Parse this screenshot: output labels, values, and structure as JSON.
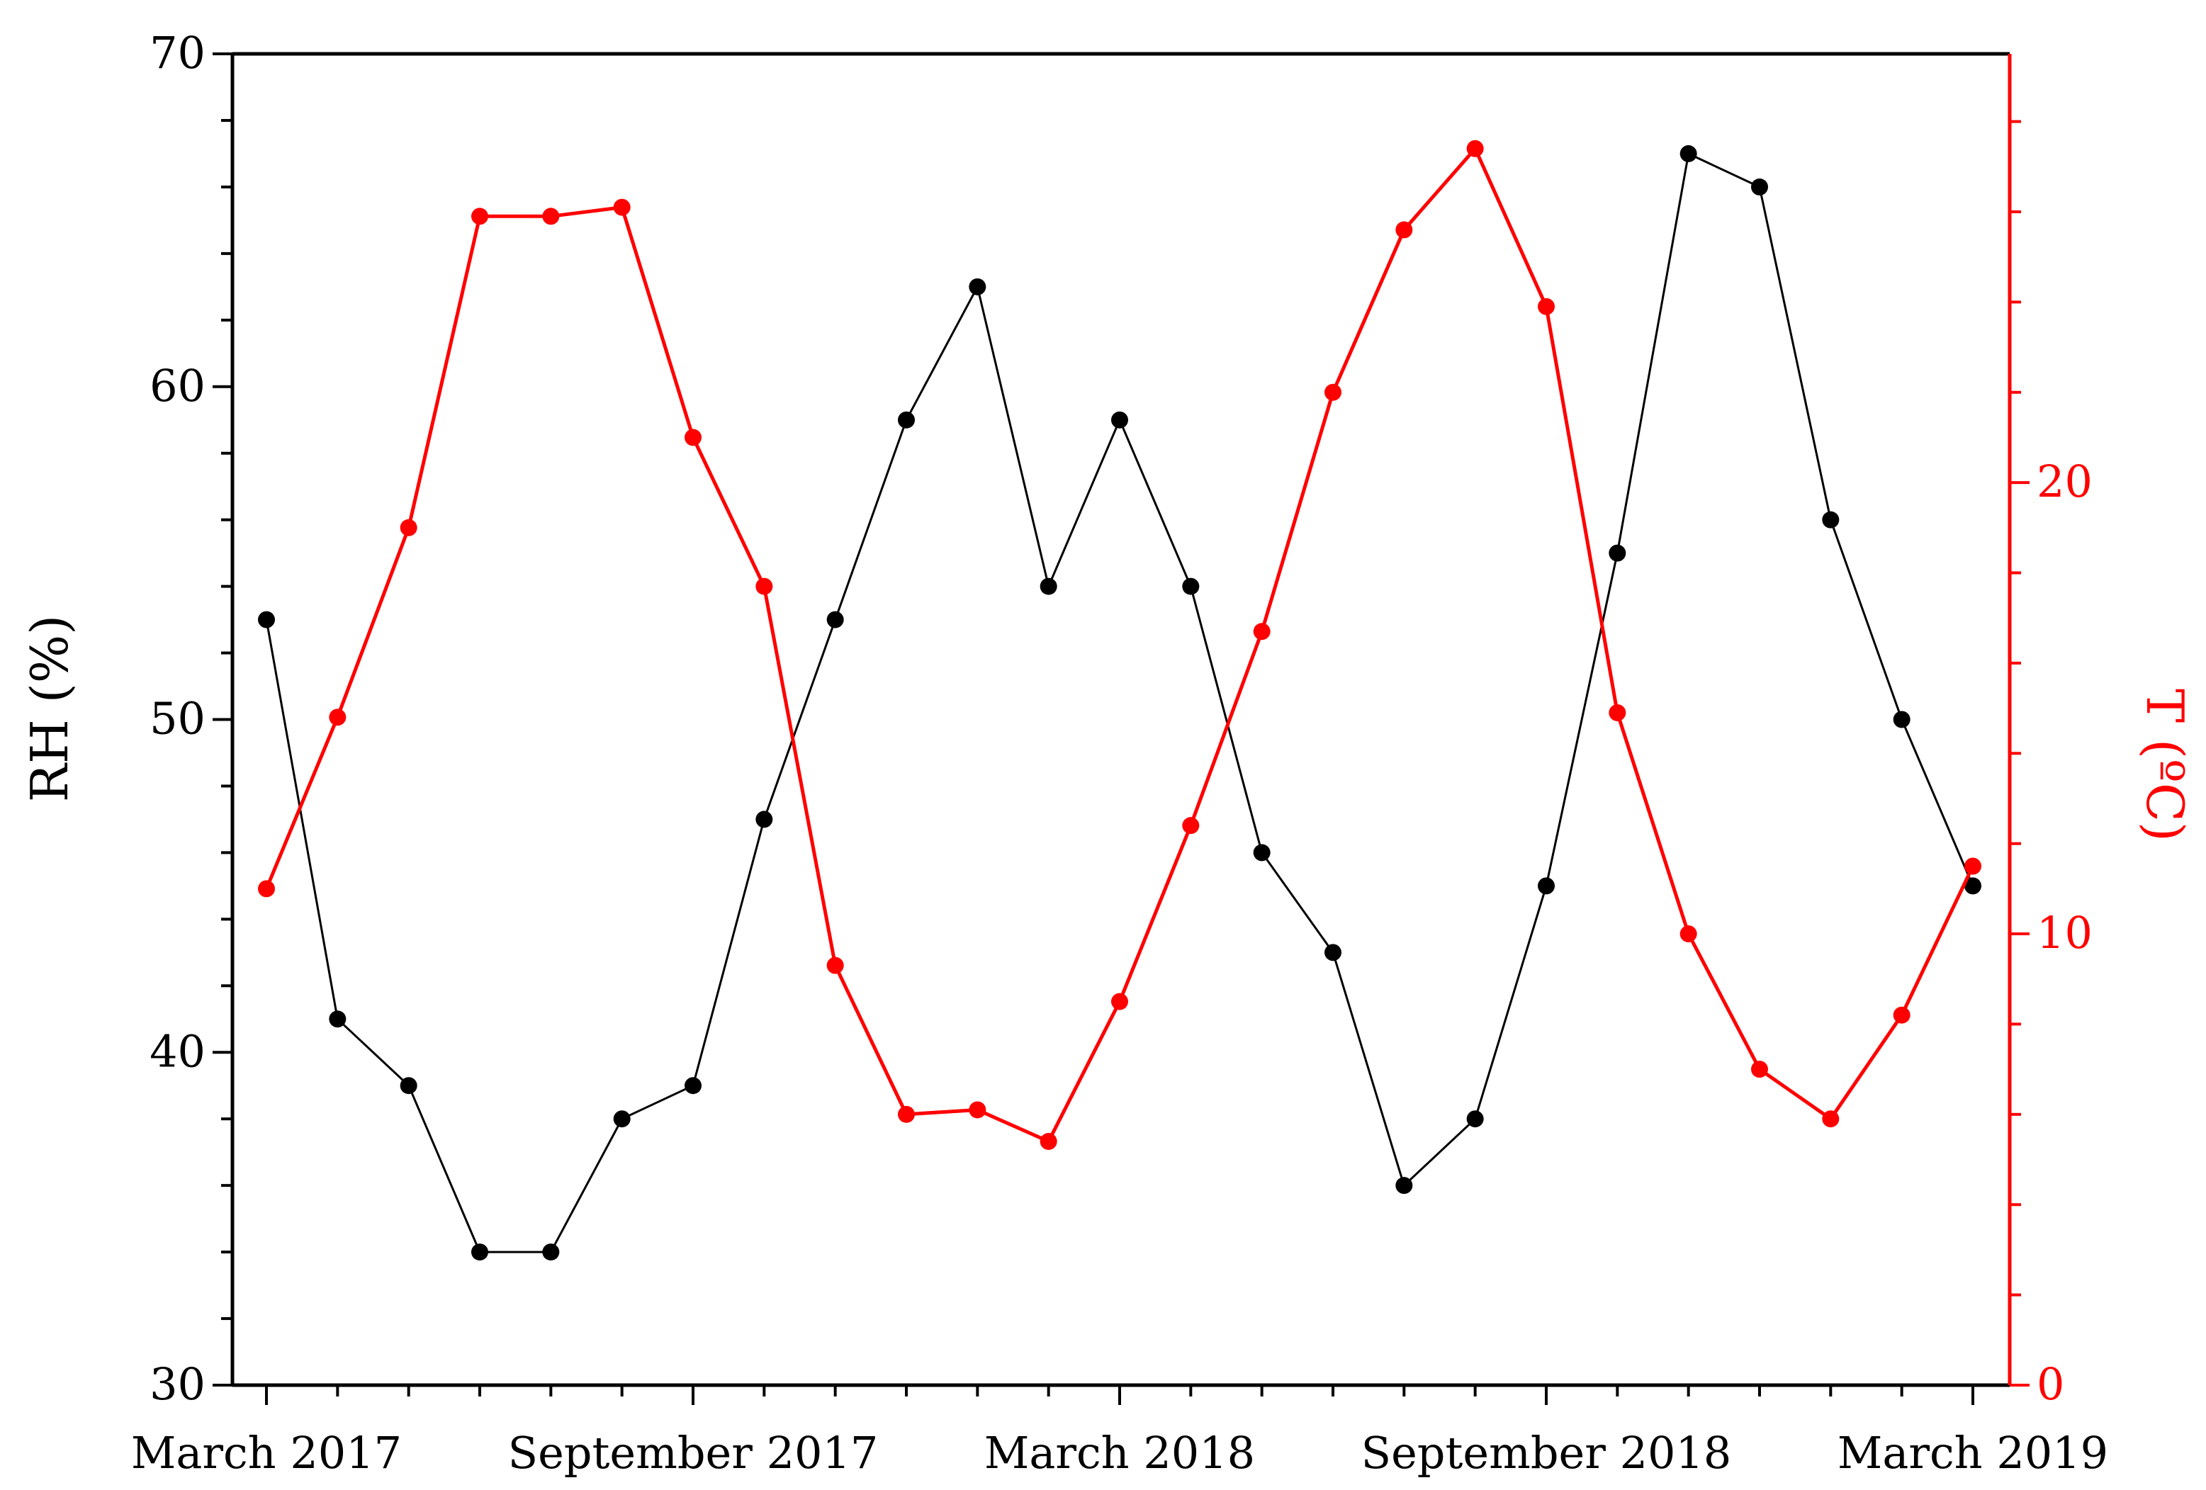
{
  "chart_data": {
    "type": "line",
    "title": "",
    "xlabel": "",
    "x": [
      "2017-03",
      "2017-04",
      "2017-05",
      "2017-06",
      "2017-07",
      "2017-08",
      "2017-09",
      "2017-10",
      "2017-11",
      "2017-12",
      "2018-01",
      "2018-02",
      "2018-03",
      "2018-04",
      "2018-05",
      "2018-06",
      "2018-07",
      "2018-08",
      "2018-09",
      "2018-10",
      "2018-11",
      "2018-12",
      "2019-01",
      "2019-02",
      "2019-03"
    ],
    "xticks": [
      "March 2017",
      "September 2017",
      "March 2018",
      "September 2018",
      "March 2019"
    ],
    "xtick_positions": [
      "2017-03",
      "2017-09",
      "2018-03",
      "2018-09",
      "2019-03"
    ],
    "ylabel_left": "RH (%)",
    "ylabel_right": "T (ºC)",
    "ylim_left": [
      30,
      70
    ],
    "yticks_left": [
      30,
      40,
      50,
      60,
      70
    ],
    "ylim_right": [
      0,
      29.5
    ],
    "yticks_right": [
      0,
      10,
      20
    ],
    "grid": false,
    "series": [
      {
        "axis": "left",
        "color": "#000000",
        "values": [
          53,
          41,
          39,
          34,
          34,
          38,
          39,
          47,
          53,
          59,
          63,
          54,
          59,
          54,
          46,
          43,
          36,
          38,
          45,
          55,
          67,
          66,
          56,
          50,
          45
        ]
      },
      {
        "axis": "right",
        "color": "#ff0000",
        "values": [
          11.0,
          14.8,
          19.0,
          25.9,
          25.9,
          26.1,
          21.0,
          17.7,
          9.3,
          6.0,
          6.1,
          5.4,
          8.5,
          12.4,
          16.7,
          22.0,
          25.6,
          27.4,
          23.9,
          14.9,
          10.0,
          7.0,
          5.9,
          8.2,
          11.5
        ]
      }
    ]
  }
}
